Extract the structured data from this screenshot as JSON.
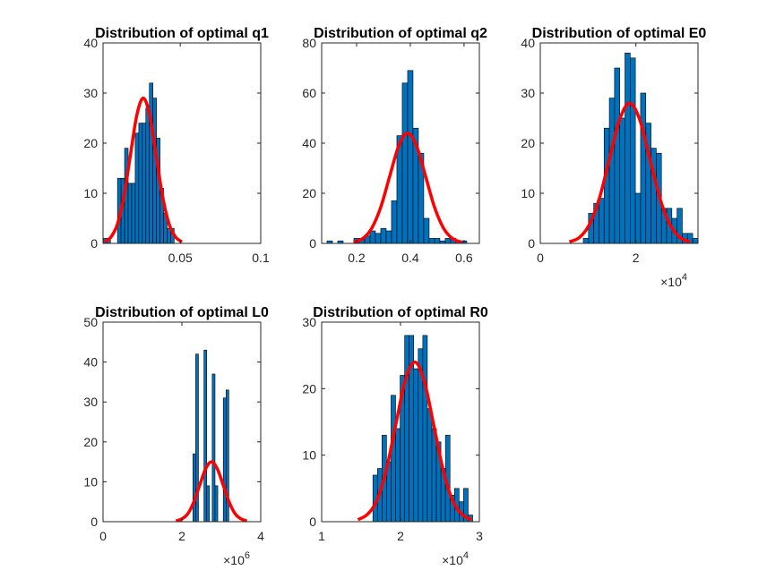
{
  "chart_data": [
    {
      "type": "histogram",
      "title": "Distribution of optimal q1",
      "bins": [
        0.0022,
        0.0044,
        0.0066,
        0.0088,
        0.011,
        0.0132,
        0.0154,
        0.0176,
        0.0198,
        0.022,
        0.0242,
        0.0264,
        0.0286,
        0.0308,
        0.033,
        0.0352,
        0.0374,
        0.0396,
        0.0418,
        0.044,
        0.0462
      ],
      "values": [
        1,
        1,
        0,
        0,
        13,
        13,
        19,
        12,
        12,
        22,
        24,
        24,
        27,
        32,
        29,
        21,
        11,
        6,
        3,
        3
      ],
      "color": "#0072bd",
      "curve": {
        "x": [
          0.003,
          0.007,
          0.011,
          0.015,
          0.019,
          0.023,
          0.027,
          0.031,
          0.035,
          0.039,
          0.043,
          0.047,
          0.051
        ],
        "values": [
          0.3,
          1.3,
          3.9,
          9.4,
          17.6,
          25.6,
          29,
          25.6,
          17.6,
          9.4,
          3.9,
          1.3,
          0.3
        ],
        "color": "#ff0000"
      },
      "xlim": [
        0.002,
        0.1
      ],
      "ylim": [
        0,
        40
      ],
      "xticks": [
        0.05,
        0.1
      ],
      "yticks": [
        0,
        10,
        20,
        30,
        40
      ]
    },
    {
      "type": "histogram",
      "title": "Distribution of optimal q2",
      "bins": [
        0.09,
        0.11,
        0.13,
        0.15,
        0.17,
        0.19,
        0.21,
        0.23,
        0.25,
        0.27,
        0.29,
        0.31,
        0.33,
        0.35,
        0.37,
        0.39,
        0.41,
        0.43,
        0.45,
        0.47,
        0.49,
        0.51,
        0.53,
        0.55,
        0.57,
        0.59,
        0.61,
        0.63
      ],
      "values": [
        1,
        0,
        1,
        0,
        0,
        2,
        2,
        3,
        5,
        4,
        6,
        5,
        17,
        43,
        64,
        69,
        46,
        36,
        10,
        2,
        2,
        1,
        2,
        2,
        1,
        1,
        0
      ],
      "color": "#0072bd",
      "curve": {
        "x": [
          0.189,
          0.2225,
          0.256,
          0.2895,
          0.323,
          0.3565,
          0.39,
          0.4235,
          0.457,
          0.4905,
          0.524,
          0.5575,
          0.591
        ],
        "values": [
          0.5,
          1.9,
          6,
          14.3,
          26.7,
          38.8,
          44,
          38.8,
          26.7,
          14.3,
          6,
          1.9,
          0.5
        ],
        "color": "#ff0000"
      },
      "xlim": [
        0.07,
        0.657
      ],
      "ylim": [
        0,
        80
      ],
      "xticks": [
        0.2,
        0.4,
        0.6
      ],
      "yticks": [
        0,
        20,
        40,
        60,
        80
      ]
    },
    {
      "type": "histogram",
      "title": "Distribution of optimal E0",
      "bins": [
        9000,
        10090,
        11180,
        12270,
        13360,
        14450,
        15540,
        16630,
        17720,
        18810,
        19900,
        20990,
        22080,
        23170,
        24260,
        25350,
        26440,
        27530,
        28620,
        29710,
        30800,
        31890,
        32980
      ],
      "values": [
        1,
        6,
        8,
        9,
        23,
        29,
        35,
        25,
        38,
        37,
        10,
        30,
        24,
        19,
        18,
        7,
        7,
        5,
        7,
        2,
        2,
        1
      ],
      "color": "#0072bd",
      "curve": {
        "x": [
          6100,
          8200,
          10300,
          12400,
          14500,
          16600,
          18700,
          20800,
          22900,
          25000,
          27100,
          29200,
          31300
        ],
        "values": [
          0.3,
          1.2,
          3.8,
          9.1,
          17,
          24.7,
          28,
          24.7,
          17,
          9.1,
          3.8,
          1.2,
          0.3
        ],
        "color": "#ff0000"
      },
      "xlim": [
        0,
        33000
      ],
      "ylim": [
        0,
        40
      ],
      "xticks": [
        0,
        {
          "value": 20000,
          "label": "2"
        }
      ],
      "yticks": [
        0,
        10,
        20,
        30,
        40
      ],
      "x_scale_label": {
        "base": "×10",
        "power": "4"
      }
    },
    {
      "type": "histogram",
      "title": "Distribution of optimal L0",
      "bins": [
        2280000,
        2350000,
        2420000,
        2490000,
        2560000,
        2630000,
        2700000,
        2770000,
        2840000,
        2910000,
        2980000,
        3050000,
        3120000,
        3190000
      ],
      "values": [
        17,
        42,
        0,
        0,
        43,
        9,
        0,
        37,
        9,
        0,
        0,
        31,
        33
      ],
      "color": "#0072bd",
      "curve": {
        "x": [
          1850000,
          2000000,
          2150000,
          2300000,
          2450000,
          2600000,
          2750000,
          2900000,
          3050000,
          3200000,
          3350000,
          3500000,
          3650000
        ],
        "values": [
          0.2,
          0.7,
          2,
          4.9,
          9.1,
          13.2,
          15,
          13.2,
          9.1,
          4.9,
          2,
          0.7,
          0.2
        ],
        "color": "#ff0000"
      },
      "xlim": [
        0,
        4000000
      ],
      "ylim": [
        0,
        50
      ],
      "xticks": [
        0,
        {
          "value": 2000000,
          "label": "2"
        },
        {
          "value": 4000000,
          "label": "4"
        }
      ],
      "yticks": [
        0,
        10,
        20,
        30,
        40,
        50
      ],
      "x_scale_label": {
        "base": "×10",
        "power": "6"
      }
    },
    {
      "type": "histogram",
      "title": "Distribution of optimal R0",
      "bins": [
        16500,
        17075,
        17650,
        18225,
        18800,
        19375,
        19950,
        20525,
        21100,
        21675,
        22250,
        22825,
        23400,
        23975,
        24550,
        25125,
        25700,
        26275,
        26850,
        27425,
        28000,
        28575,
        29150
      ],
      "values": [
        7,
        8,
        13,
        9,
        19,
        14,
        22,
        28,
        28,
        23,
        26,
        28,
        17,
        14,
        12,
        8,
        13,
        4,
        5,
        3,
        5,
        1
      ],
      "color": "#0072bd",
      "curve": {
        "x": [
          14600,
          15800,
          17000,
          18200,
          19400,
          20600,
          21800,
          23000,
          24200,
          25400,
          26600,
          27800,
          29000
        ],
        "values": [
          0.3,
          1.1,
          3.2,
          7.8,
          14.6,
          21.2,
          24,
          21.2,
          14.6,
          7.8,
          3.2,
          1.1,
          0.3
        ],
        "color": "#ff0000"
      },
      "xlim": [
        10000,
        30000
      ],
      "ylim": [
        0,
        30
      ],
      "xticks": [
        {
          "value": 10000,
          "label": "1"
        },
        {
          "value": 20000,
          "label": "2"
        },
        {
          "value": 30000,
          "label": "3"
        }
      ],
      "yticks": [
        0,
        10,
        20,
        30
      ],
      "x_scale_label": {
        "base": "×10",
        "power": "4"
      }
    }
  ]
}
